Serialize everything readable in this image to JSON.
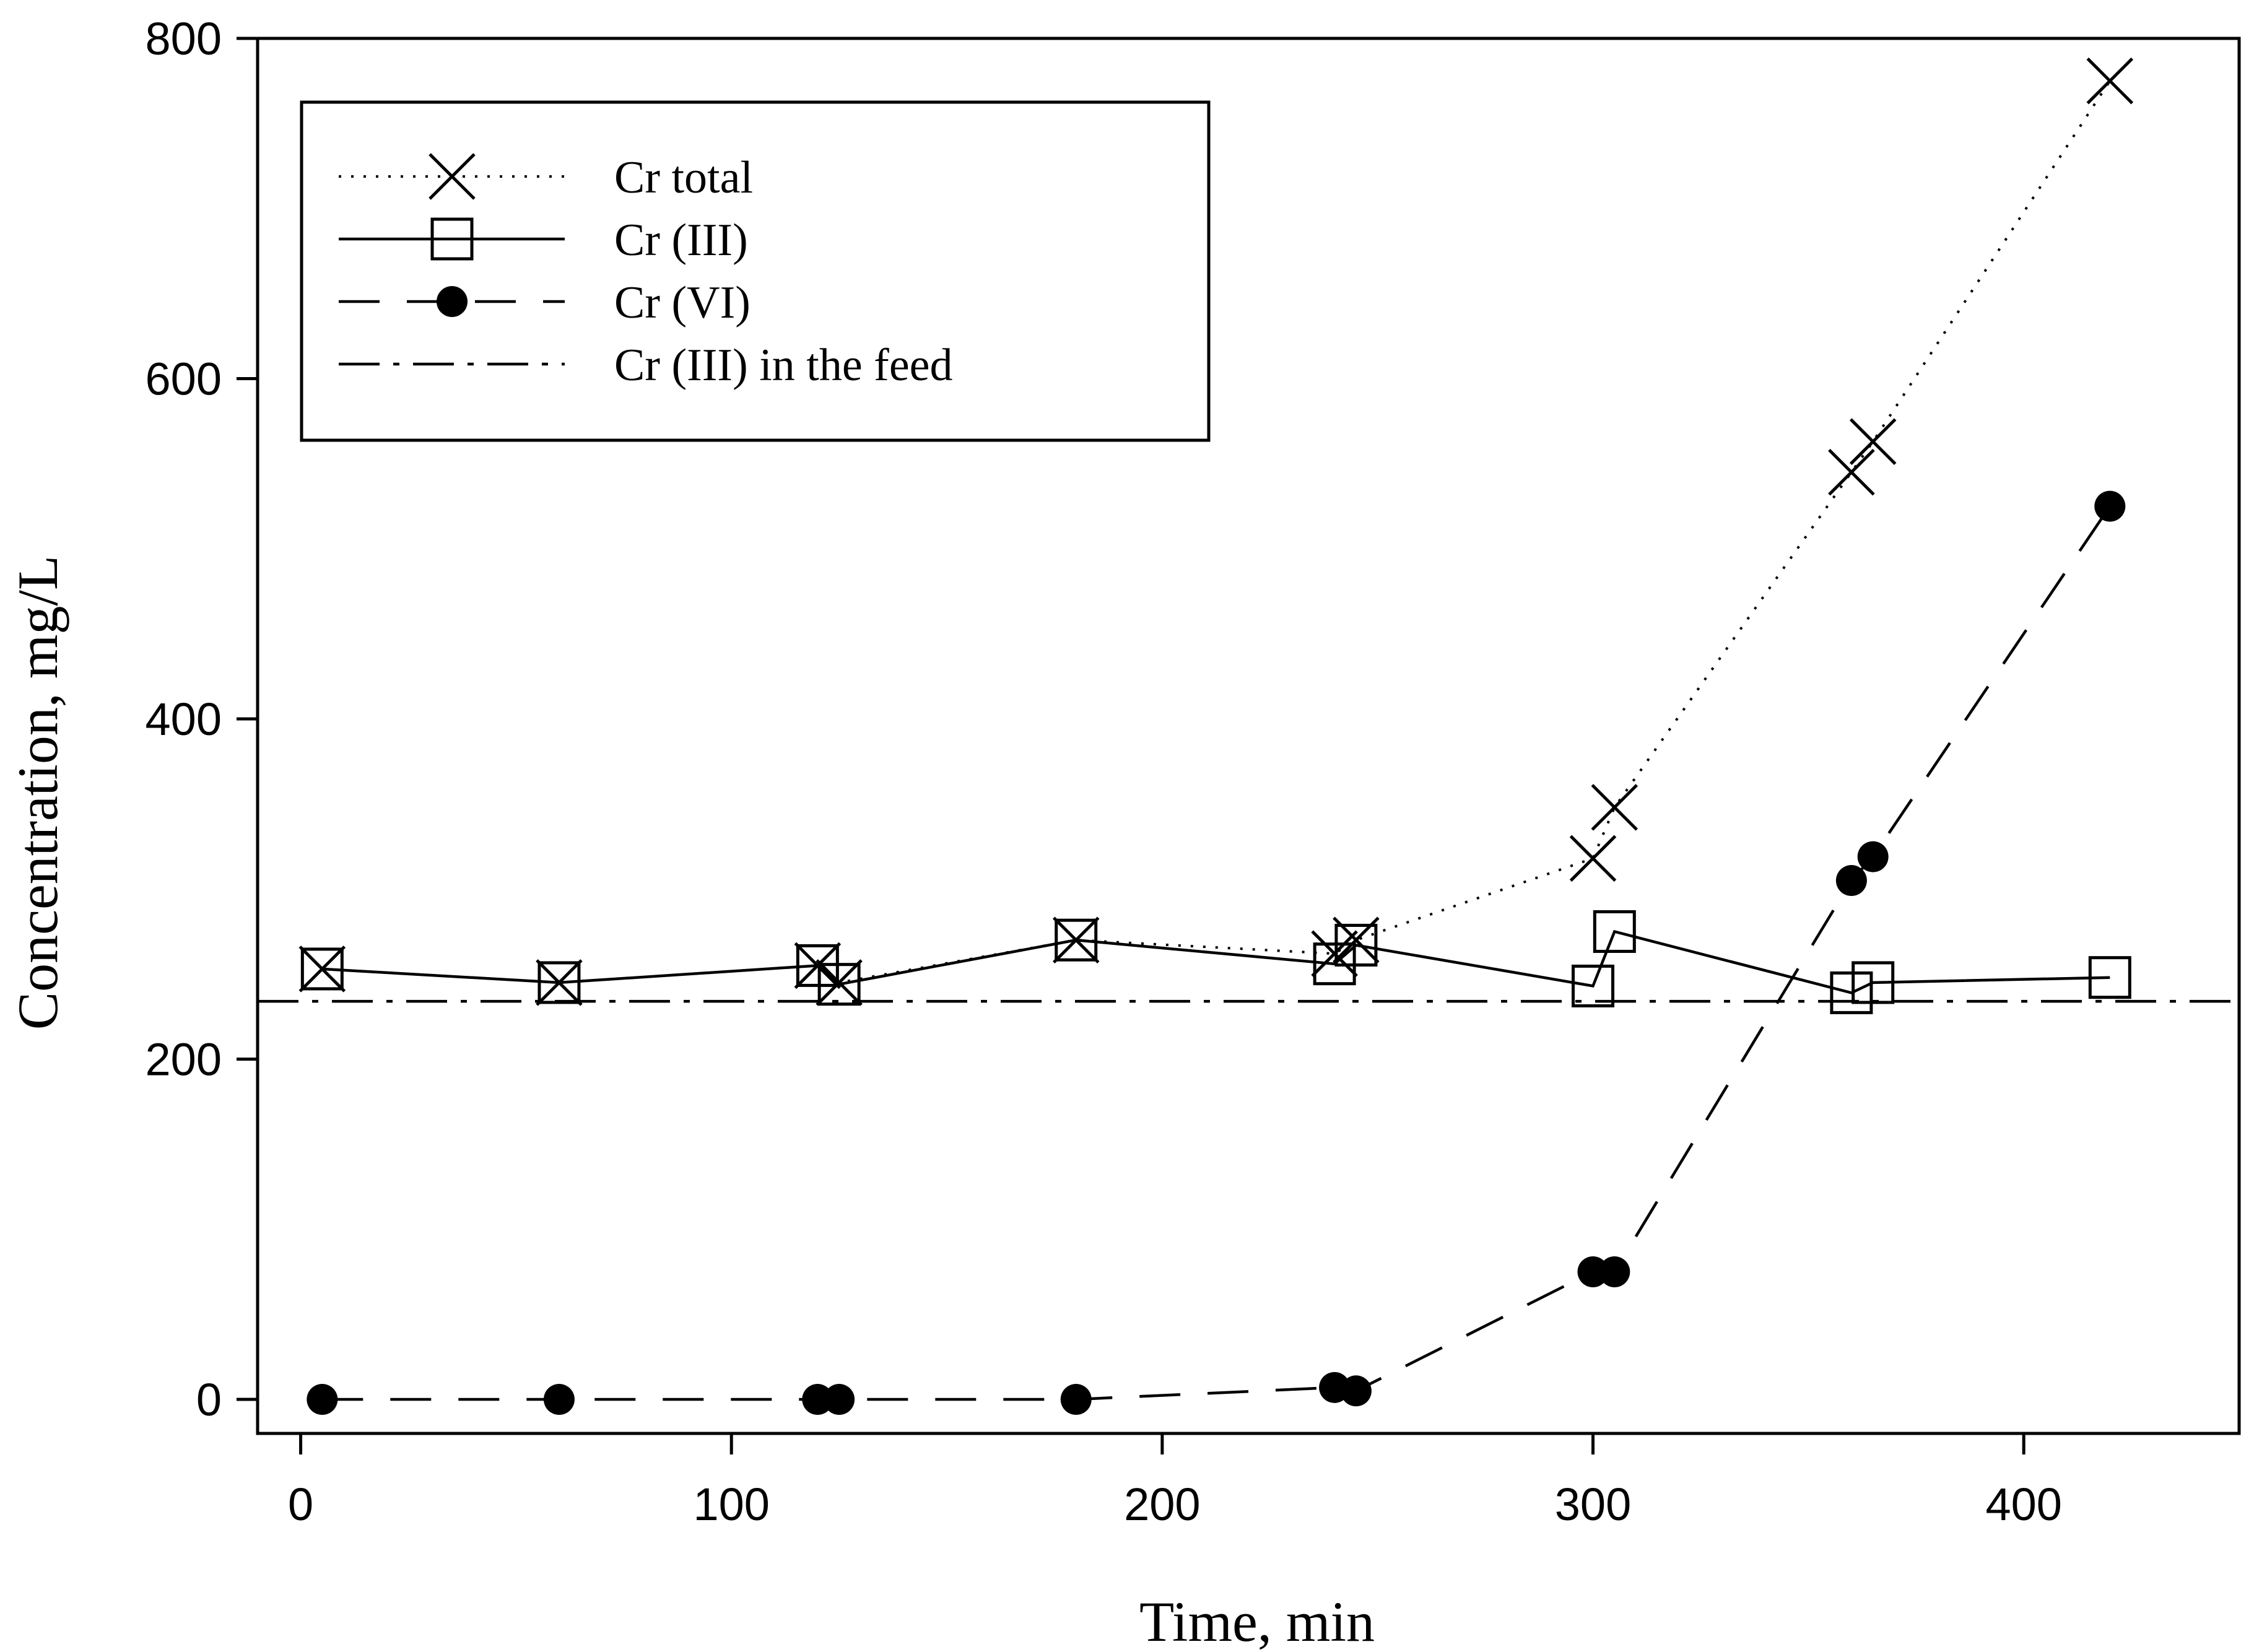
{
  "chart_data": {
    "type": "line",
    "title": "",
    "xlabel": "Time, min",
    "ylabel": "Concentration, mg/L",
    "xlim": [
      -10,
      450
    ],
    "ylim": [
      -20,
      800
    ],
    "xticks": [
      0,
      100,
      200,
      300,
      400
    ],
    "yticks": [
      0,
      200,
      400,
      600,
      800
    ],
    "xtick_labels": [
      "0",
      "100",
      "200",
      "300",
      "400"
    ],
    "ytick_labels": [
      "0",
      "200",
      "400",
      "600",
      "800"
    ],
    "grid": false,
    "legend_position": "top-left",
    "series": [
      {
        "name": "Cr total",
        "line_style": "dotted",
        "marker": "x",
        "points": [
          [
            5,
            253
          ],
          [
            60,
            245
          ],
          [
            120,
            255
          ],
          [
            125,
            245
          ],
          [
            180,
            270
          ],
          [
            240,
            262
          ],
          [
            245,
            270
          ],
          [
            300,
            318
          ],
          [
            305,
            348
          ],
          [
            360,
            545
          ],
          [
            365,
            563
          ],
          [
            420,
            775
          ]
        ]
      },
      {
        "name": "Cr (III)",
        "line_style": "solid",
        "marker": "open-square",
        "points": [
          [
            5,
            253
          ],
          [
            60,
            245
          ],
          [
            120,
            255
          ],
          [
            125,
            244
          ],
          [
            180,
            270
          ],
          [
            240,
            256
          ],
          [
            245,
            267
          ],
          [
            300,
            243
          ],
          [
            305,
            275
          ],
          [
            360,
            239
          ],
          [
            365,
            245
          ],
          [
            420,
            248
          ]
        ]
      },
      {
        "name": "Cr (VI)",
        "line_style": "long-dash",
        "marker": "filled-circle",
        "points": [
          [
            5,
            0
          ],
          [
            60,
            0
          ],
          [
            120,
            0
          ],
          [
            125,
            0
          ],
          [
            180,
            0
          ],
          [
            240,
            7
          ],
          [
            245,
            5
          ],
          [
            300,
            75
          ],
          [
            305,
            75
          ],
          [
            360,
            305
          ],
          [
            365,
            319
          ],
          [
            420,
            525
          ]
        ]
      },
      {
        "name": "Cr (III) in the feed",
        "line_style": "dash-dot",
        "marker": "none",
        "constant_y": 234
      }
    ]
  }
}
